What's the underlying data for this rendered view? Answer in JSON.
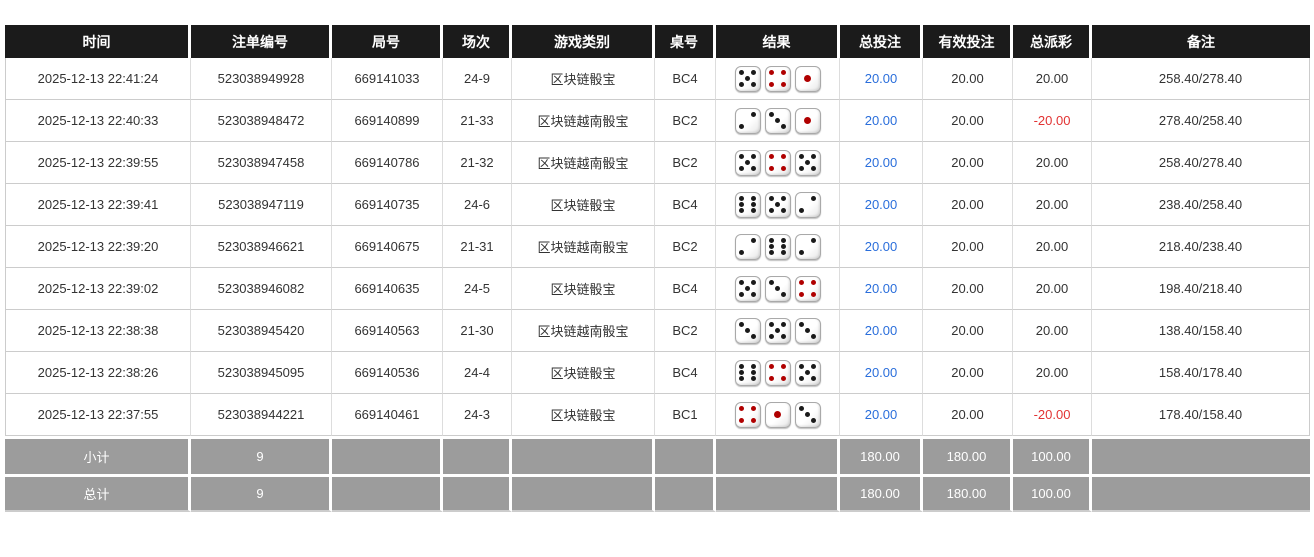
{
  "colors": {
    "header_bg": "#1b1b1b",
    "header_text": "#ffffff",
    "summary_bg": "#9c9c9c",
    "body_text": "#333333",
    "total_bet_blue": "#2a6edb",
    "negative_red": "#e23333",
    "pip_black": "#1a1a1a",
    "pip_red": "#b00000"
  },
  "table": {
    "columns": [
      {
        "id": "time",
        "label": "时间"
      },
      {
        "id": "bet_id",
        "label": "注单编号"
      },
      {
        "id": "round_id",
        "label": "局号"
      },
      {
        "id": "session",
        "label": "场次"
      },
      {
        "id": "game_type",
        "label": "游戏类别"
      },
      {
        "id": "table_no",
        "label": "桌号"
      },
      {
        "id": "result",
        "label": "结果"
      },
      {
        "id": "total_bet",
        "label": "总投注"
      },
      {
        "id": "valid_bet",
        "label": "有效投注"
      },
      {
        "id": "payout",
        "label": "总派彩"
      },
      {
        "id": "remark",
        "label": "备注"
      }
    ],
    "rows": [
      {
        "time": "2025-12-13 22:41:24",
        "bet_id": "523038949928",
        "round_id": "669141033",
        "session": "24-9",
        "game_type": "区块链骰宝",
        "table_no": "BC4",
        "dice": [
          5,
          4,
          1
        ],
        "total_bet": "20.00",
        "valid_bet": "20.00",
        "payout": "20.00",
        "remark": "258.40/278.40"
      },
      {
        "time": "2025-12-13 22:40:33",
        "bet_id": "523038948472",
        "round_id": "669140899",
        "session": "21-33",
        "game_type": "区块链越南骰宝",
        "table_no": "BC2",
        "dice": [
          2,
          3,
          1
        ],
        "total_bet": "20.00",
        "valid_bet": "20.00",
        "payout": "-20.00",
        "remark": "278.40/258.40"
      },
      {
        "time": "2025-12-13 22:39:55",
        "bet_id": "523038947458",
        "round_id": "669140786",
        "session": "21-32",
        "game_type": "区块链越南骰宝",
        "table_no": "BC2",
        "dice": [
          5,
          4,
          5
        ],
        "total_bet": "20.00",
        "valid_bet": "20.00",
        "payout": "20.00",
        "remark": "258.40/278.40"
      },
      {
        "time": "2025-12-13 22:39:41",
        "bet_id": "523038947119",
        "round_id": "669140735",
        "session": "24-6",
        "game_type": "区块链骰宝",
        "table_no": "BC4",
        "dice": [
          6,
          5,
          2
        ],
        "total_bet": "20.00",
        "valid_bet": "20.00",
        "payout": "20.00",
        "remark": "238.40/258.40"
      },
      {
        "time": "2025-12-13 22:39:20",
        "bet_id": "523038946621",
        "round_id": "669140675",
        "session": "21-31",
        "game_type": "区块链越南骰宝",
        "table_no": "BC2",
        "dice": [
          2,
          6,
          2
        ],
        "total_bet": "20.00",
        "valid_bet": "20.00",
        "payout": "20.00",
        "remark": "218.40/238.40"
      },
      {
        "time": "2025-12-13 22:39:02",
        "bet_id": "523038946082",
        "round_id": "669140635",
        "session": "24-5",
        "game_type": "区块链骰宝",
        "table_no": "BC4",
        "dice": [
          5,
          3,
          4
        ],
        "total_bet": "20.00",
        "valid_bet": "20.00",
        "payout": "20.00",
        "remark": "198.40/218.40"
      },
      {
        "time": "2025-12-13 22:38:38",
        "bet_id": "523038945420",
        "round_id": "669140563",
        "session": "21-30",
        "game_type": "区块链越南骰宝",
        "table_no": "BC2",
        "dice": [
          3,
          5,
          3
        ],
        "total_bet": "20.00",
        "valid_bet": "20.00",
        "payout": "20.00",
        "remark": "138.40/158.40"
      },
      {
        "time": "2025-12-13 22:38:26",
        "bet_id": "523038945095",
        "round_id": "669140536",
        "session": "24-4",
        "game_type": "区块链骰宝",
        "table_no": "BC4",
        "dice": [
          6,
          4,
          5
        ],
        "total_bet": "20.00",
        "valid_bet": "20.00",
        "payout": "20.00",
        "remark": "158.40/178.40"
      },
      {
        "time": "2025-12-13 22:37:55",
        "bet_id": "523038944221",
        "round_id": "669140461",
        "session": "24-3",
        "game_type": "区块链骰宝",
        "table_no": "BC1",
        "dice": [
          4,
          1,
          3
        ],
        "total_bet": "20.00",
        "valid_bet": "20.00",
        "payout": "-20.00",
        "remark": "178.40/158.40"
      }
    ],
    "summary_rows": [
      {
        "label": "小计",
        "count": "9",
        "total_bet": "180.00",
        "valid_bet": "180.00",
        "payout": "100.00"
      },
      {
        "label": "总计",
        "count": "9",
        "total_bet": "180.00",
        "valid_bet": "180.00",
        "payout": "100.00"
      }
    ]
  }
}
